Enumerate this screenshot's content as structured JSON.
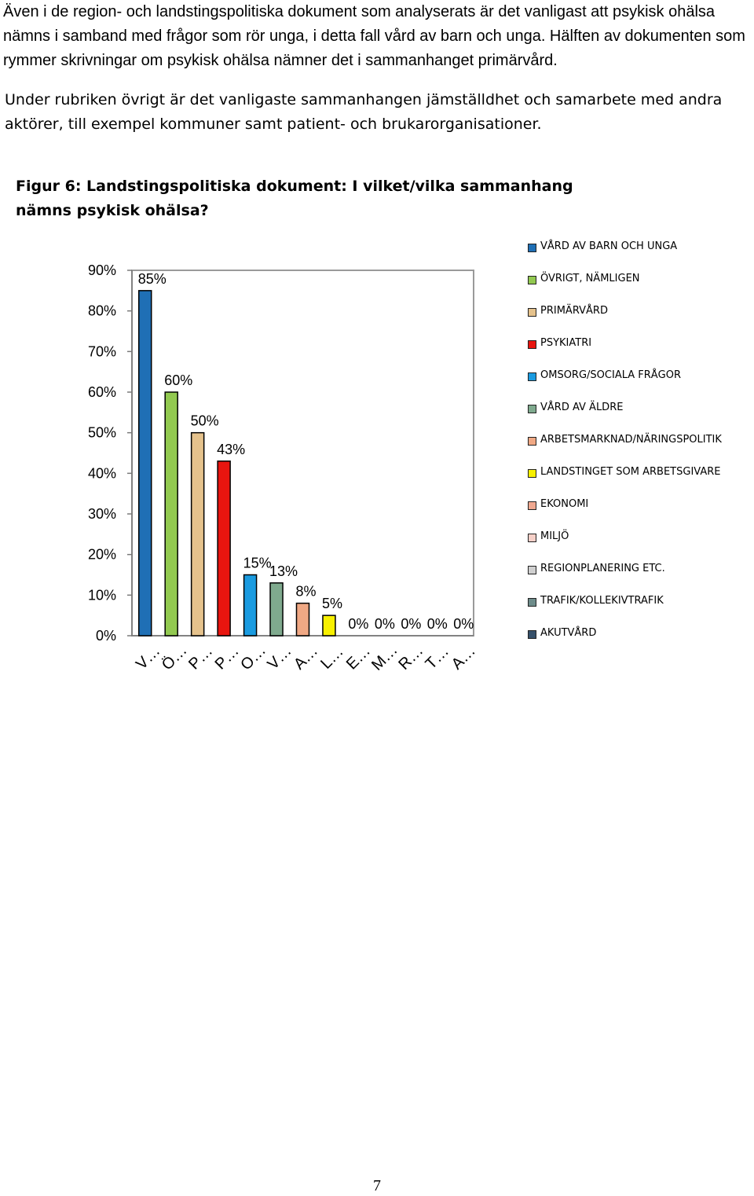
{
  "document": {
    "paragraph_1": "Även i de region- och landstingspolitiska dokument som analyserats är det vanligast att psykisk ohälsa nämns i samband med frågor som rör unga, i detta fall vård av barn och unga. Hälften av dokumenten som rymmer skrivningar om psykisk ohälsa nämner det i sammanhanget primärvård.",
    "paragraph_2": "Under rubriken övrigt är det vanligaste sammanhangen jämställdhet och samarbete med andra aktörer, till exempel kommuner samt patient- och brukarorganisationer.",
    "figure_caption": "Figur 6: Landstingspolitiska dokument: I vilket/vilka sammanhang nämns psykisk ohälsa?",
    "page_number": "7"
  },
  "chart_data": {
    "type": "bar",
    "title": "",
    "xlabel": "",
    "ylabel": "",
    "ylim": [
      0,
      90
    ],
    "yticks": [
      "0%",
      "10%",
      "20%",
      "30%",
      "40%",
      "50%",
      "60%",
      "70%",
      "80%",
      "90%"
    ],
    "grid": true,
    "legend_position": "right",
    "categories": [
      "V…",
      "Ö…",
      "P…",
      "P…",
      "O…",
      "V…",
      "A…",
      "L…",
      "E…",
      "M…",
      "R…",
      "T…",
      "A…"
    ],
    "series_names": [
      "VÅRD AV BARN OCH UNGA",
      "ÖVRIGT, NÄMLIGEN",
      "PRIMÄRVÅRD",
      "PSYKIATRI",
      "OMSORG/SOCIALA FRÅGOR",
      "VÅRD AV ÄLDRE",
      "ARBETSMARKNAD/NÄRINGSPOLITIK",
      "LANDSTINGET SOM ARBETSGIVARE",
      "EKONOMI",
      "MILJÖ",
      "REGIONPLANERING ETC.",
      "TRAFIK/KOLLEKIVTRAFIK",
      "AKUTVÅRD"
    ],
    "values": [
      85,
      60,
      50,
      43,
      15,
      13,
      8,
      5,
      0,
      0,
      0,
      0,
      0
    ],
    "data_labels": [
      "85%",
      "60%",
      "50%",
      "43%",
      "15%",
      "13%",
      "8%",
      "5%",
      "0%",
      "0%",
      "0%",
      "0%",
      "0%"
    ],
    "colors": [
      "#1f6fb5",
      "#92c950",
      "#e5c28c",
      "#e8150f",
      "#1a9be0",
      "#7faa8e",
      "#f0a884",
      "#f8f000",
      "#f0a890",
      "#f6d0c8",
      "#d0d0d0",
      "#6e8c8a",
      "#36506a"
    ]
  }
}
